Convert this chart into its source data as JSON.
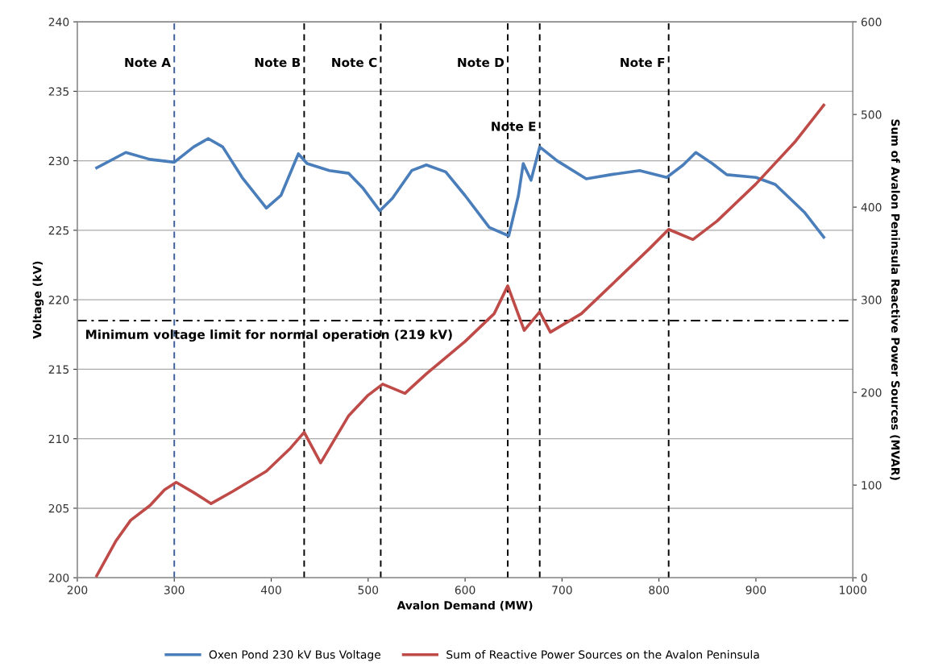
{
  "chart_data": {
    "type": "line",
    "xlabel": "Avalon Demand (MW)",
    "ylabel": "Voltage (kV)",
    "y2label": "Sum of Avalon Peninsula Reactive Power Sources (MVAR)",
    "xlim": [
      200,
      1000
    ],
    "xticks": [
      200,
      300,
      400,
      500,
      600,
      700,
      800,
      900,
      1000
    ],
    "ylim": [
      200,
      240
    ],
    "yticks": [
      200,
      205,
      210,
      215,
      220,
      225,
      230,
      235,
      240
    ],
    "y2lim": [
      0,
      600
    ],
    "y2ticks": [
      0,
      100,
      200,
      300,
      400,
      500,
      600
    ],
    "grid": "y",
    "legend": "bottom",
    "marker": "none",
    "line_style": "solid",
    "series": [
      {
        "name": "Oxen Pond 230 kV Bus Voltage",
        "color": "#4a7ebb",
        "x": [
          220,
          250,
          275,
          300,
          320,
          335,
          350,
          370,
          395,
          410,
          428,
          437,
          460,
          480,
          495,
          512,
          525,
          545,
          560,
          580,
          600,
          625,
          645,
          655,
          660,
          668,
          677,
          695,
          725,
          750,
          780,
          808,
          825,
          838,
          855,
          870,
          900,
          920,
          950,
          970
        ],
        "values": [
          229.5,
          230.6,
          230.1,
          229.9,
          231.0,
          231.6,
          231.0,
          228.8,
          226.6,
          227.5,
          230.5,
          229.8,
          229.3,
          229.1,
          228.0,
          226.4,
          227.3,
          229.3,
          229.7,
          229.2,
          227.5,
          225.2,
          224.6,
          227.5,
          229.8,
          228.6,
          231.0,
          230.0,
          228.7,
          229.0,
          229.3,
          228.8,
          229.7,
          230.6,
          229.8,
          229.0,
          228.8,
          228.3,
          226.3,
          224.5
        ]
      },
      {
        "name": "Sum of Reactive Power Sources on the Avalon Peninsula",
        "color": "#be4b48",
        "axis": "y2",
        "x": [
          220,
          240,
          255,
          275,
          290,
          302,
          320,
          338,
          360,
          395,
          420,
          434,
          451,
          480,
          500,
          515,
          538,
          560,
          600,
          630,
          644,
          661,
          677,
          688,
          720,
          760,
          790,
          810,
          835,
          860,
          900,
          940,
          970
        ],
        "values": [
          2,
          40,
          62,
          78,
          95,
          103,
          92,
          80,
          93,
          115,
          140,
          157,
          124,
          175,
          197,
          209,
          199,
          220,
          255,
          285,
          315,
          267,
          287,
          265,
          285,
          325,
          355,
          376,
          365,
          385,
          425,
          470,
          510
        ]
      }
    ],
    "ref_lines": [
      {
        "axis": "x",
        "value": 300,
        "color": "#3b5e9a",
        "line_style": "dashed"
      },
      {
        "axis": "x",
        "value": 434,
        "color": "#000000",
        "line_style": "dashed"
      },
      {
        "axis": "x",
        "value": 513,
        "color": "#000000",
        "line_style": "dashed"
      },
      {
        "axis": "x",
        "value": 644,
        "color": "#000000",
        "line_style": "dashed"
      },
      {
        "axis": "x",
        "value": 677,
        "color": "#000000",
        "line_style": "dashed"
      },
      {
        "axis": "x",
        "value": 810,
        "color": "#000000",
        "line_style": "dashed"
      },
      {
        "axis": "y",
        "value": 218.5,
        "label": "Minimum voltage limit for normal operation (219 kV)",
        "color": "#000000",
        "line_style": "dashdot"
      }
    ],
    "annotations": [
      {
        "text": "Note A",
        "x": 300,
        "y": 237
      },
      {
        "text": "Note B",
        "x": 434,
        "y": 237
      },
      {
        "text": "Note C",
        "x": 513,
        "y": 237
      },
      {
        "text": "Note D",
        "x": 644,
        "y": 237
      },
      {
        "text": "Note E",
        "x": 677,
        "y": 232.4
      },
      {
        "text": "Note F",
        "x": 810,
        "y": 237
      }
    ]
  }
}
